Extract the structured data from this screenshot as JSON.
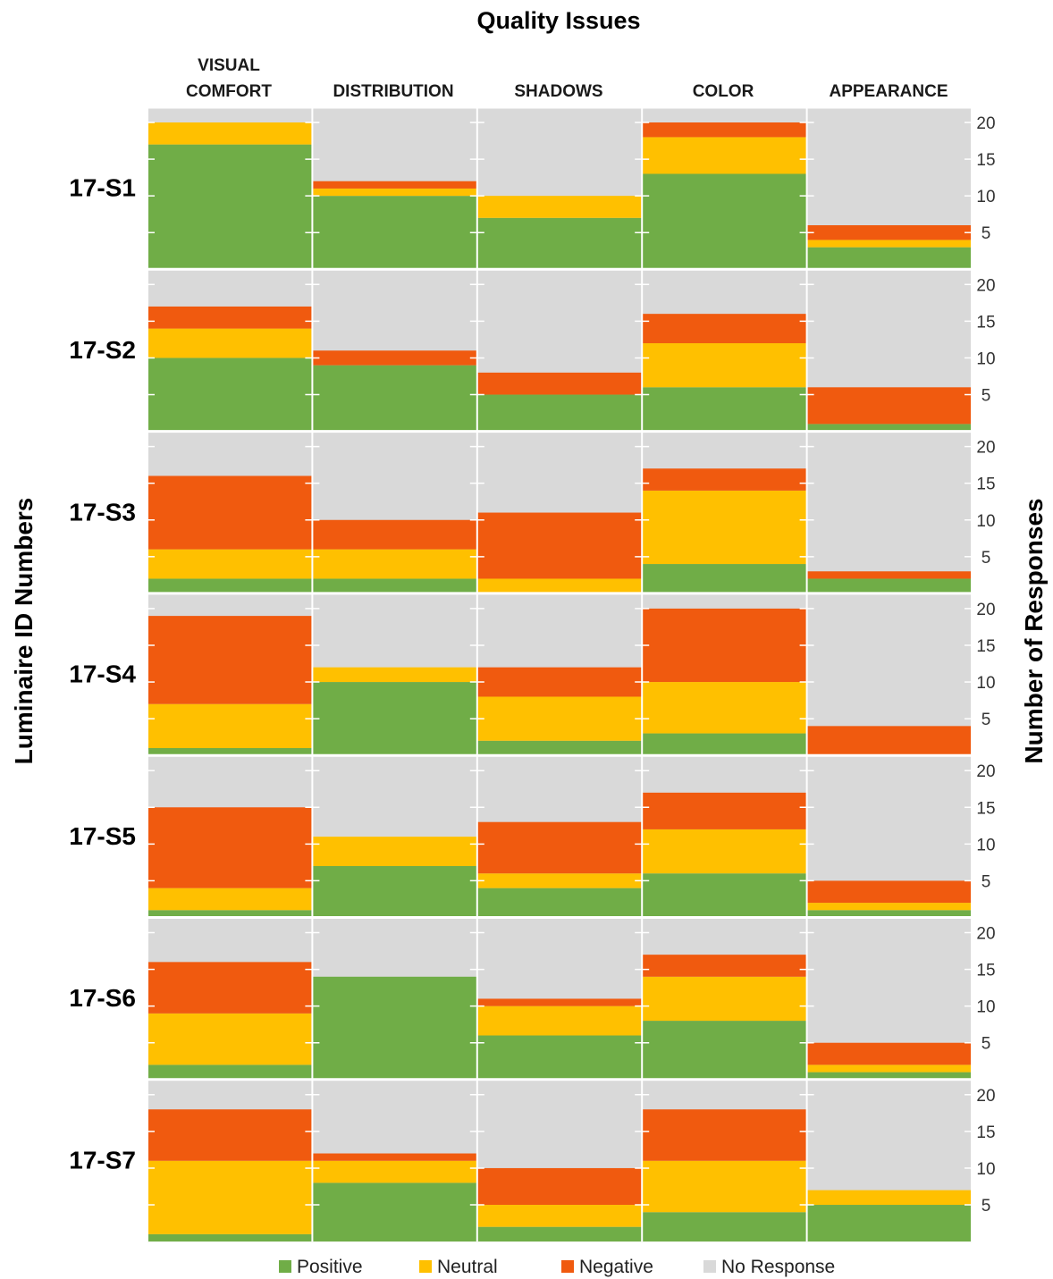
{
  "chart_data": {
    "type": "bar",
    "stacked": true,
    "title": "Quality Issues",
    "ylabel_left": "Luminaire ID Numbers",
    "ylabel_right": "Number of Responses",
    "columns": [
      "VISUAL COMFORT",
      "DISTRIBUTION",
      "SHADOWS",
      "COLOR",
      "APPEARANCE"
    ],
    "column_headers": [
      {
        "line1": "VISUAL",
        "line2": "COMFORT"
      },
      {
        "line1": "",
        "line2": "DISTRIBUTION"
      },
      {
        "line1": "",
        "line2": "SHADOWS"
      },
      {
        "line1": "",
        "line2": "COLOR"
      },
      {
        "line1": "",
        "line2": "APPEARANCE"
      }
    ],
    "rows": [
      "17-S1",
      "17-S2",
      "17-S3",
      "17-S4",
      "17-S5",
      "17-S6",
      "17-S7"
    ],
    "ylim": [
      0,
      20
    ],
    "yticks": [
      5,
      10,
      15,
      20
    ],
    "series_order": [
      "Positive",
      "Neutral",
      "Negative",
      "No Response"
    ],
    "legend": [
      {
        "name": "Positive",
        "color": "#70ad47"
      },
      {
        "name": "Neutral",
        "color": "#ffc000"
      },
      {
        "name": "Negative",
        "color": "#f05a0f"
      },
      {
        "name": "No Response",
        "color": "#d9d9d9"
      }
    ],
    "legend_position": "bottom",
    "values": {
      "17-S1": {
        "VISUAL COMFORT": {
          "Positive": 17,
          "Neutral": 3,
          "Negative": 0
        },
        "DISTRIBUTION": {
          "Positive": 10,
          "Neutral": 1,
          "Negative": 1
        },
        "SHADOWS": {
          "Positive": 7,
          "Neutral": 3,
          "Negative": 0
        },
        "COLOR": {
          "Positive": 13,
          "Neutral": 5,
          "Negative": 2
        },
        "APPEARANCE": {
          "Positive": 3,
          "Neutral": 1,
          "Negative": 2
        }
      },
      "17-S2": {
        "VISUAL COMFORT": {
          "Positive": 10,
          "Neutral": 4,
          "Negative": 3
        },
        "DISTRIBUTION": {
          "Positive": 9,
          "Neutral": 0,
          "Negative": 2
        },
        "SHADOWS": {
          "Positive": 5,
          "Neutral": 0,
          "Negative": 3
        },
        "COLOR": {
          "Positive": 6,
          "Neutral": 6,
          "Negative": 4
        },
        "APPEARANCE": {
          "Positive": 1,
          "Neutral": 0,
          "Negative": 5
        }
      },
      "17-S3": {
        "VISUAL COMFORT": {
          "Positive": 2,
          "Neutral": 4,
          "Negative": 10
        },
        "DISTRIBUTION": {
          "Positive": 2,
          "Neutral": 4,
          "Negative": 4
        },
        "SHADOWS": {
          "Positive": 0,
          "Neutral": 2,
          "Negative": 9
        },
        "COLOR": {
          "Positive": 4,
          "Neutral": 10,
          "Negative": 3
        },
        "APPEARANCE": {
          "Positive": 2,
          "Neutral": 0,
          "Negative": 1
        }
      },
      "17-S4": {
        "VISUAL COMFORT": {
          "Positive": 1,
          "Neutral": 6,
          "Negative": 12
        },
        "DISTRIBUTION": {
          "Positive": 10,
          "Neutral": 2,
          "Negative": 0
        },
        "SHADOWS": {
          "Positive": 2,
          "Neutral": 6,
          "Negative": 4
        },
        "COLOR": {
          "Positive": 3,
          "Neutral": 7,
          "Negative": 10
        },
        "APPEARANCE": {
          "Positive": 0,
          "Neutral": 0,
          "Negative": 4
        }
      },
      "17-S5": {
        "VISUAL COMFORT": {
          "Positive": 1,
          "Neutral": 3,
          "Negative": 11
        },
        "DISTRIBUTION": {
          "Positive": 7,
          "Neutral": 4,
          "Negative": 0
        },
        "SHADOWS": {
          "Positive": 4,
          "Neutral": 2,
          "Negative": 7
        },
        "COLOR": {
          "Positive": 6,
          "Neutral": 6,
          "Negative": 5
        },
        "APPEARANCE": {
          "Positive": 1,
          "Neutral": 1,
          "Negative": 3
        }
      },
      "17-S6": {
        "VISUAL COMFORT": {
          "Positive": 2,
          "Neutral": 7,
          "Negative": 7
        },
        "DISTRIBUTION": {
          "Positive": 14,
          "Neutral": 0,
          "Negative": 0
        },
        "SHADOWS": {
          "Positive": 6,
          "Neutral": 4,
          "Negative": 1
        },
        "COLOR": {
          "Positive": 8,
          "Neutral": 6,
          "Negative": 3
        },
        "APPEARANCE": {
          "Positive": 1,
          "Neutral": 1,
          "Negative": 3
        }
      },
      "17-S7": {
        "VISUAL COMFORT": {
          "Positive": 1,
          "Neutral": 10,
          "Negative": 7
        },
        "DISTRIBUTION": {
          "Positive": 8,
          "Neutral": 3,
          "Negative": 1
        },
        "SHADOWS": {
          "Positive": 2,
          "Neutral": 3,
          "Negative": 5
        },
        "COLOR": {
          "Positive": 4,
          "Neutral": 7,
          "Negative": 7
        },
        "APPEARANCE": {
          "Positive": 5,
          "Neutral": 2,
          "Negative": 0
        }
      }
    }
  }
}
